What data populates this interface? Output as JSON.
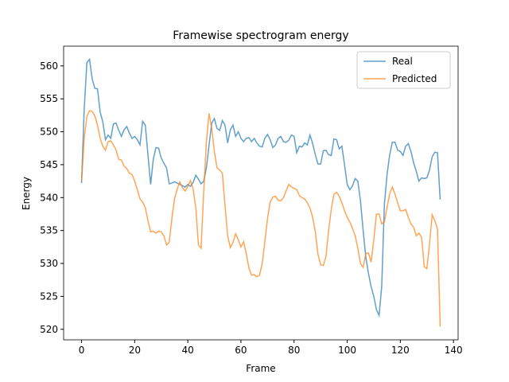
{
  "chart_data": {
    "type": "line",
    "title": "Framewise spectrogram energy",
    "x_label": "Frame",
    "y_label": "Energy",
    "x": [
      0,
      1,
      2,
      3,
      4,
      5,
      6,
      7,
      8,
      9,
      10,
      11,
      12,
      13,
      14,
      15,
      16,
      17,
      18,
      19,
      20,
      21,
      22,
      23,
      24,
      25,
      26,
      27,
      28,
      29,
      30,
      31,
      32,
      33,
      34,
      35,
      36,
      37,
      38,
      39,
      40,
      41,
      42,
      43,
      44,
      45,
      46,
      47,
      48,
      49,
      50,
      51,
      52,
      53,
      54,
      55,
      56,
      57,
      58,
      59,
      60,
      61,
      62,
      63,
      64,
      65,
      66,
      67,
      68,
      69,
      70,
      71,
      72,
      73,
      74,
      75,
      76,
      77,
      78,
      79,
      80,
      81,
      82,
      83,
      84,
      85,
      86,
      87,
      88,
      89,
      90,
      91,
      92,
      93,
      94,
      95,
      96,
      97,
      98,
      99,
      100,
      101,
      102,
      103,
      104,
      105,
      106,
      107,
      108,
      109,
      110,
      111,
      112,
      113,
      114,
      115,
      116,
      117,
      118,
      119,
      120,
      121,
      122,
      123,
      124,
      125,
      126,
      127,
      128,
      129,
      130,
      131,
      132,
      133,
      134,
      135
    ],
    "series": [
      {
        "name": "Real",
        "color": "#1f77b4",
        "values": [
          542.2,
          553.5,
          560.5,
          561,
          558,
          556.6,
          556.5,
          553,
          551.5,
          548.8,
          549.5,
          549,
          551.2,
          551.3,
          550.2,
          549.3,
          550.3,
          550.8,
          549.8,
          549,
          549.3,
          548.8,
          548,
          551.6,
          551,
          546.5,
          542,
          545.8,
          547.6,
          547.5,
          546,
          545.2,
          544.5,
          542.1,
          542.2,
          542.4,
          542.2,
          542,
          541.8,
          541.6,
          542,
          541.7,
          542.3,
          543.4,
          542.8,
          542.1,
          542.5,
          544.5,
          548,
          551.3,
          552,
          550.5,
          550.2,
          551.7,
          551,
          548.3,
          550.3,
          551,
          549.3,
          550,
          549,
          548.5,
          549,
          549.1,
          548.5,
          549,
          548.3,
          547.8,
          547.7,
          549,
          549.6,
          548.8,
          547.6,
          548,
          549,
          549.3,
          548.5,
          548.4,
          548.7,
          549.5,
          549.3,
          546.8,
          547.8,
          547.7,
          548.3,
          548,
          549.5,
          548.2,
          546.5,
          545.1,
          545.1,
          547.1,
          547.2,
          546.5,
          546.4,
          548.9,
          548.8,
          547.4,
          547.8,
          545,
          542,
          541.2,
          541.8,
          542.9,
          542.5,
          539.5,
          535,
          531,
          528.5,
          526.5,
          525,
          523,
          522.1,
          526.5,
          539,
          543.5,
          546.5,
          548.4,
          548.4,
          547.2,
          547,
          546.4,
          547.8,
          548.2,
          547,
          545.3,
          544,
          542.5,
          543,
          542.9,
          543,
          544.2,
          546.2,
          546.9,
          546.8,
          539.7
        ]
      },
      {
        "name": "Predicted",
        "color": "#ff7f0e",
        "values": [
          542.5,
          549,
          552.3,
          553.2,
          553.1,
          552.4,
          551,
          549,
          547.8,
          547.2,
          548.5,
          548.6,
          548,
          547.2,
          545.8,
          545.7,
          544.8,
          544.4,
          543.7,
          543.5,
          542.5,
          541.2,
          539.8,
          539.3,
          538.5,
          536.5,
          534.8,
          534.9,
          534.6,
          534.9,
          534.8,
          534.2,
          532.8,
          533.2,
          536.8,
          539.8,
          541.3,
          542.4,
          541.5,
          541,
          541.7,
          542.6,
          541.3,
          538.5,
          532.8,
          532.3,
          541,
          548.5,
          552.8,
          550.5,
          547,
          544.5,
          544.2,
          543.7,
          538.8,
          534.2,
          532.4,
          533.2,
          534.5,
          533.6,
          532.5,
          533.3,
          531.5,
          529.3,
          528.2,
          528.3,
          528,
          528.2,
          530,
          533.3,
          536.8,
          539.3,
          540.1,
          540.2,
          539.6,
          539.5,
          540,
          541,
          542,
          541.6,
          541.4,
          541.2,
          540.3,
          540,
          539.8,
          539.2,
          538.4,
          537,
          534.8,
          531.4,
          529.8,
          529.7,
          531,
          535,
          538.2,
          540.5,
          540.8,
          540.2,
          539.2,
          538,
          537,
          536.3,
          535.3,
          534.2,
          532.3,
          530,
          529.4,
          531.5,
          531.6,
          530.2,
          533.5,
          537.5,
          537.5,
          536,
          536.3,
          538.5,
          540.6,
          541.6,
          540.5,
          539.2,
          538,
          538,
          538.2,
          537,
          536,
          535.5,
          534.2,
          534.6,
          534,
          529.5,
          529.2,
          533,
          537.4,
          536.5,
          535.2,
          520.4
        ]
      }
    ],
    "xlim": [
      -6.75,
      141.75
    ],
    "ylim": [
      518.4,
      563.0
    ],
    "xticks": [
      0,
      20,
      40,
      60,
      80,
      100,
      120,
      140
    ],
    "yticks": [
      520,
      525,
      530,
      535,
      540,
      545,
      550,
      555,
      560
    ],
    "legend": "upper right",
    "alpha": 0.7
  }
}
